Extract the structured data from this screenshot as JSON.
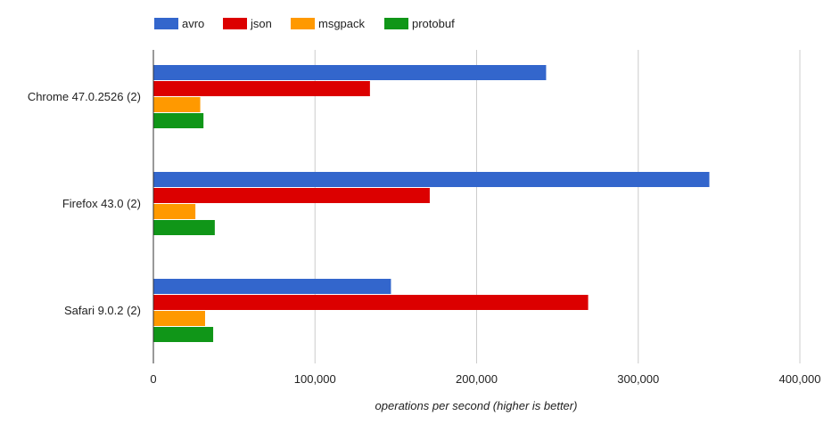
{
  "colors": {
    "avro": "#3366cc",
    "json": "#dc0000",
    "msgpack": "#ff9900",
    "protobuf": "#109618",
    "grid": "#cccccc",
    "axis": "#333333"
  },
  "chart_data": {
    "type": "bar",
    "orientation": "horizontal",
    "categories": [
      "Chrome 47.0.2526 (2)",
      "Firefox 43.0 (2)",
      "Safari 9.0.2 (2)"
    ],
    "series": [
      {
        "name": "avro",
        "values": [
          243000,
          344000,
          147000
        ]
      },
      {
        "name": "json",
        "values": [
          134000,
          171000,
          269000
        ]
      },
      {
        "name": "msgpack",
        "values": [
          29000,
          26000,
          32000
        ]
      },
      {
        "name": "protobuf",
        "values": [
          31000,
          38000,
          37000
        ]
      }
    ],
    "xlim": [
      0,
      400000
    ],
    "xticks": [
      0,
      100000,
      200000,
      300000,
      400000
    ],
    "xtick_labels": [
      "0",
      "100,000",
      "200,000",
      "300,000",
      "400,000"
    ],
    "xlabel": "operations per second (higher is better)",
    "legend_position": "top-left",
    "grid": true
  }
}
